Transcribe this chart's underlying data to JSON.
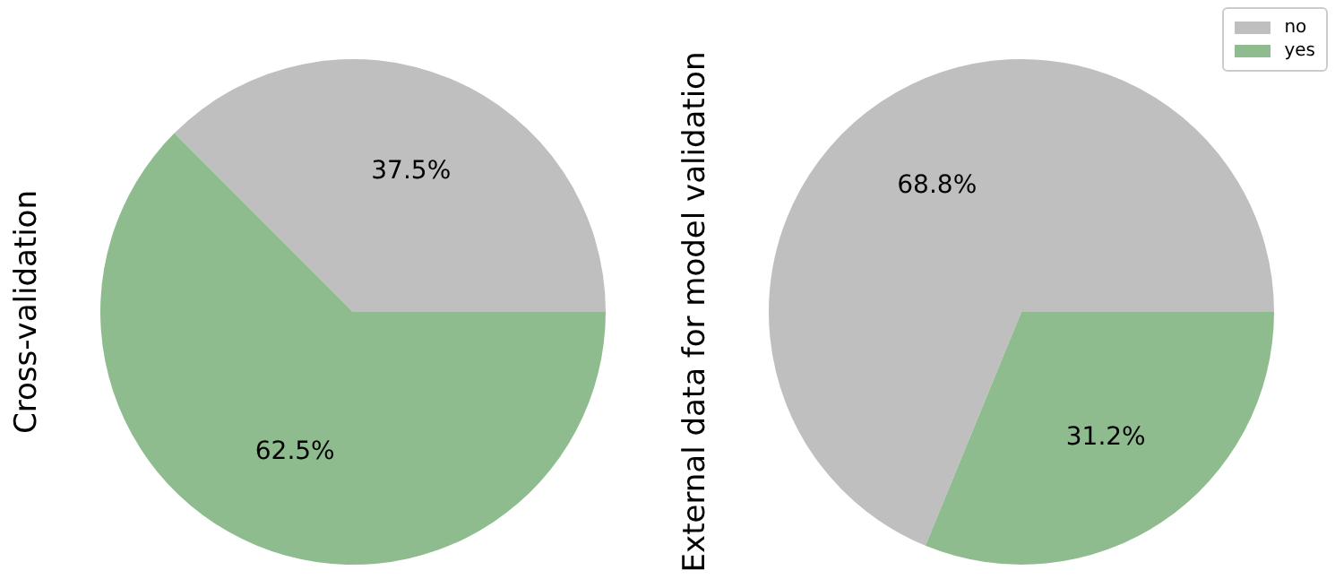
{
  "chart_data": [
    {
      "type": "pie",
      "ylabel": "Cross-validation",
      "categories": [
        null,
        null
      ],
      "values": [
        37.5,
        62.5
      ],
      "value_labels": [
        "37.5%",
        "62.5%"
      ],
      "colors": [
        "#bfbfbf",
        "#8fbc8f"
      ],
      "legend": false
    },
    {
      "type": "pie",
      "ylabel": "External data for model validation",
      "categories": [
        "no",
        "yes"
      ],
      "values": [
        68.8,
        31.2
      ],
      "value_labels": [
        "68.8%",
        "31.2%"
      ],
      "colors": [
        "#bfbfbf",
        "#8fbc8f"
      ],
      "legend": "top right"
    }
  ]
}
